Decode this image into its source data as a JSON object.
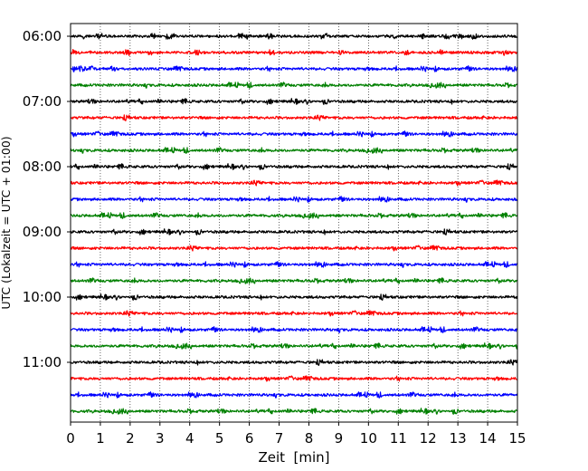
{
  "chart_data": {
    "type": "line",
    "title": "",
    "xlabel": "Zeit  [min]",
    "ylabel": "UTC (Lokalzeit = UTC + 01:00)",
    "xlim": [
      0,
      15
    ],
    "x_ticks": [
      "0",
      "1",
      "2",
      "3",
      "4",
      "5",
      "6",
      "7",
      "8",
      "9",
      "10",
      "11",
      "12",
      "13",
      "14",
      "15"
    ],
    "y_ticks": [
      "06:00",
      "07:00",
      "08:00",
      "09:00",
      "10:00",
      "11:00"
    ],
    "grid": "vertical dotted lines at each minute",
    "traces_per_hour": 4,
    "minutes_per_trace": 15,
    "trace_start_times": [
      "06:00",
      "06:15",
      "06:30",
      "06:45",
      "07:00",
      "07:15",
      "07:30",
      "07:45",
      "08:00",
      "08:15",
      "08:30",
      "08:45",
      "09:00",
      "09:15",
      "09:30",
      "09:45",
      "10:00",
      "10:15",
      "10:30",
      "10:45",
      "11:00",
      "11:15",
      "11:30",
      "11:45"
    ],
    "color_cycle": [
      "#000000",
      "#ff0000",
      "#0000ff",
      "#008000"
    ]
  }
}
